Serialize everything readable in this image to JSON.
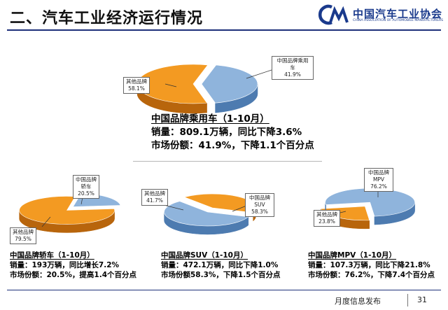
{
  "slide": {
    "title": "二、汽车工业经济运行情况",
    "footer": "月度信息发布",
    "page_number": "31"
  },
  "logo": {
    "text": "中国汽车工业协会",
    "subtext": "CHINA ASSOCIATION OF AUTOMOBILE MANUFACTURERS"
  },
  "colors": {
    "domestic": "#8fb4dc",
    "domestic_dark": "#4d7bb0",
    "other": "#f39a22",
    "other_dark": "#b8650c"
  },
  "chart_data": [
    {
      "type": "pie",
      "title": "中国品牌乘用车（1-10月）",
      "slices": [
        {
          "label": "中国品牌乘用车",
          "value": 41.9,
          "display": "41.9%"
        },
        {
          "label": "其他品牌",
          "value": 58.1,
          "display": "58.1%"
        }
      ],
      "notes": [
        "销量：809.1万辆，同比下降3.6%",
        "市场份额：41.9%，下降1.1个百分点"
      ]
    },
    {
      "type": "pie",
      "title": "中国品牌轿车（1-10月）",
      "slices": [
        {
          "label": "中国品牌轿车",
          "value": 20.5,
          "display": "20.5%"
        },
        {
          "label": "其他品牌",
          "value": 79.5,
          "display": "79.5%"
        }
      ],
      "notes": [
        "销量：193万辆，同比增长7.2%",
        "市场份额：20.5%，提高1.4个百分点"
      ]
    },
    {
      "type": "pie",
      "title": "中国品牌SUV（1-10月）",
      "slices": [
        {
          "label": "中国品牌SUV",
          "value": 58.3,
          "display": "58.3%"
        },
        {
          "label": "其他品牌",
          "value": 41.7,
          "display": "41.7%"
        }
      ],
      "notes": [
        "销量：472.1万辆，同比下降1.0%",
        "市场份额58.3%，下降1.5个百分点"
      ]
    },
    {
      "type": "pie",
      "title": "中国品牌MPV（1-10月）",
      "slices": [
        {
          "label": "中国品牌MPV",
          "value": 76.2,
          "display": "76.2%"
        },
        {
          "label": "其他品牌",
          "value": 23.8,
          "display": "23.8%"
        }
      ],
      "notes": [
        "销量：107.3万辆，同比下降21.8%",
        "市场份额：76.2%，下降7.4个百分点"
      ]
    }
  ]
}
